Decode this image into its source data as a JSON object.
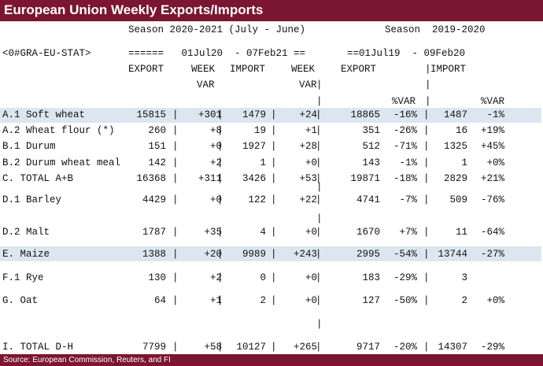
{
  "title": "European Union Weekly Exports/Imports",
  "header": {
    "season_current": "Season 2020-2021 (July - June)",
    "season_prev": "Season  2019-2020",
    "ric": "<0#GRA-EU-STAT>",
    "dates_current": "======   01Jul20  - 07Feb21 ==",
    "dates_prev": "==01Jul19  - 09Feb20",
    "col_export": "EXPORT",
    "col_week": "WEEK",
    "col_import": "IMPORT",
    "col_week2": "WEEK",
    "col_export_prev": "EXPORT",
    "col_import_prev": "IMPORT",
    "col_var": "VAR",
    "col_var2": "VAR",
    "col_pctvar": "%VAR",
    "col_pctvar2": "%VAR"
  },
  "rows": [
    {
      "label": "A.1 Soft wheat",
      "export": "15815",
      "week_var": "+301",
      "import": "1479",
      "week_var2": "+24",
      "export_prev": "18865",
      "pct_export": "-16%",
      "import_prev": "1487",
      "pct_import": "-1%"
    },
    {
      "label": "A.2 Wheat flour (*)",
      "export": "260",
      "week_var": "+8",
      "import": "19",
      "week_var2": "+1",
      "export_prev": "351",
      "pct_export": "-26%",
      "import_prev": "16",
      "pct_import": "+19%"
    },
    {
      "label": "B.1 Durum",
      "export": "151",
      "week_var": "+0",
      "import": "1927",
      "week_var2": "+28",
      "export_prev": "512",
      "pct_export": "-71%",
      "import_prev": "1325",
      "pct_import": "+45%"
    },
    {
      "label": "B.2 Durum wheat meal",
      "export": "142",
      "week_var": "+2",
      "import": "1",
      "week_var2": "+0",
      "export_prev": "143",
      "pct_export": "-1%",
      "import_prev": "1",
      "pct_import": "+0%"
    },
    {
      "label": "C. TOTAL A+B",
      "export": "16368",
      "week_var": "+311",
      "import": "3426",
      "week_var2": "+53",
      "export_prev": "19871",
      "pct_export": "-18%",
      "import_prev": "2829",
      "pct_import": "+21%"
    },
    {
      "label": "D.1 Barley",
      "export": "4429",
      "week_var": "+0",
      "import": "122",
      "week_var2": "+22",
      "export_prev": "4741",
      "pct_export": "-7%",
      "import_prev": "509",
      "pct_import": "-76%"
    },
    {
      "label": "D.2 Malt",
      "export": "1787",
      "week_var": "+35",
      "import": "4",
      "week_var2": "+0",
      "export_prev": "1670",
      "pct_export": "+7%",
      "import_prev": "11",
      "pct_import": "-64%"
    },
    {
      "label": "E. Maize",
      "export": "1388",
      "week_var": "+20",
      "import": "9989",
      "week_var2": "+243",
      "export_prev": "2995",
      "pct_export": "-54%",
      "import_prev": "13744",
      "pct_import": "-27%"
    },
    {
      "label": "F.1 Rye",
      "export": "130",
      "week_var": "+2",
      "import": "0",
      "week_var2": "+0",
      "export_prev": "183",
      "pct_export": "-29%",
      "import_prev": "3",
      "pct_import": ""
    },
    {
      "label": "G. Oat",
      "export": "64",
      "week_var": "+1",
      "import": "2",
      "week_var2": "+0",
      "export_prev": "127",
      "pct_export": "-50%",
      "import_prev": "2",
      "pct_import": "+0%"
    },
    {
      "label": "I. TOTAL D-H",
      "export": "7799",
      "week_var": "+58",
      "import": "10127",
      "week_var2": "+265",
      "export_prev": "9717",
      "pct_export": "-20%",
      "import_prev": "14307",
      "pct_import": "-29%"
    }
  ],
  "highlighted_rows": [
    "A.1 Soft wheat",
    "E. Maize"
  ],
  "footer": "Source: European Commission, Reuters, and FI",
  "colors": {
    "title_bar": "#7b1630",
    "highlight_row": "#dce6f1",
    "text": "#111111"
  }
}
